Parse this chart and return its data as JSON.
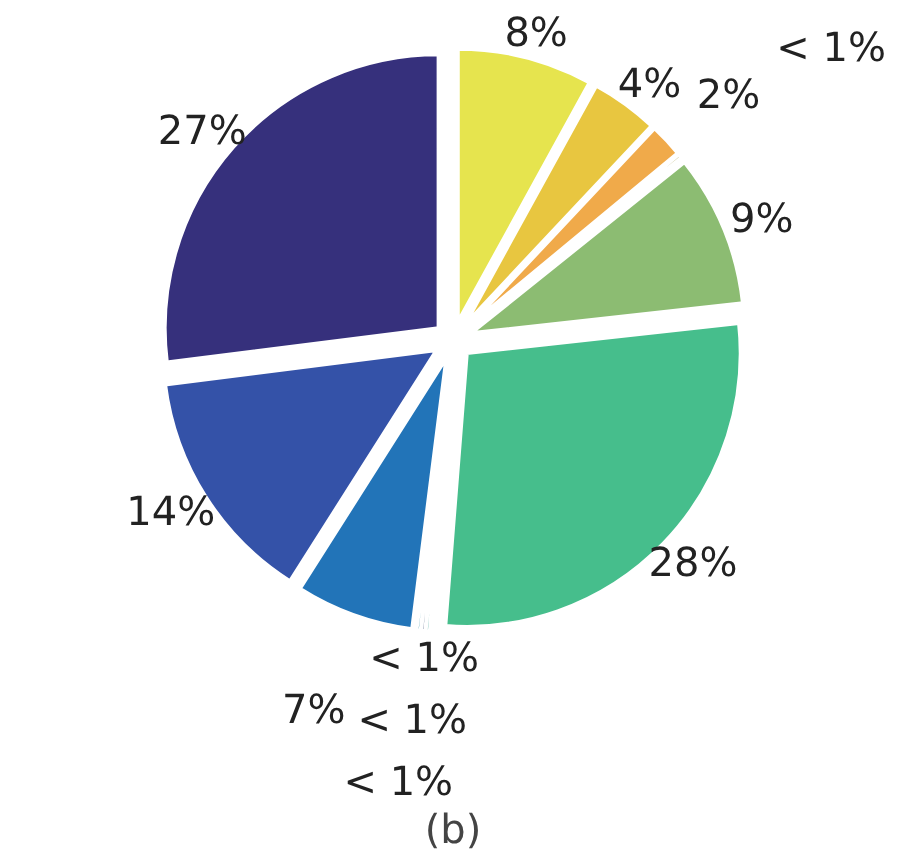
{
  "chart_data": {
    "type": "pie",
    "title": "(b)",
    "categories": [
      null,
      null,
      null,
      null,
      null,
      null,
      null,
      null,
      null,
      null,
      null,
      null
    ],
    "values": [
      8,
      4,
      2,
      0.25,
      9,
      28,
      0.25,
      0.25,
      0.25,
      7,
      14,
      27
    ],
    "value_labels": [
      "8%",
      "4%",
      "2%",
      "< 1%",
      "9%",
      "28%",
      "< 1%",
      "< 1%",
      "< 1%",
      "7%",
      "14%",
      "27%"
    ],
    "colors": [
      "#e6e44e",
      "#e8c640",
      "#f0aa4a",
      "#a8a050",
      "#8cbc72",
      "#46be8c",
      "#2e9a8c",
      "#2a3e66",
      "#2c8aa0",
      "#2274b8",
      "#3452a8",
      "#36307c"
    ]
  }
}
